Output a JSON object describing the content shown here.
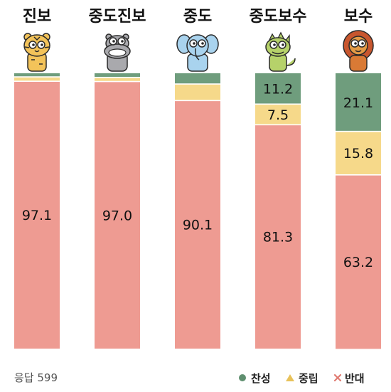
{
  "chart_data": {
    "type": "bar",
    "stacked": true,
    "orientation": "vertical",
    "categories": [
      "진보",
      "중도진보",
      "중도",
      "중도보수",
      "보수"
    ],
    "series": [
      {
        "name": "찬성",
        "color": "#6f9d7d",
        "values": [
          1.3,
          1.5,
          3.9,
          11.2,
          21.1
        ],
        "labels": [
          "",
          "",
          "",
          "11.2",
          "21.1"
        ]
      },
      {
        "name": "중립",
        "color": "#f6d98a",
        "values": [
          1.6,
          1.5,
          6.0,
          7.5,
          15.8
        ],
        "labels": [
          "",
          "",
          "",
          "7.5",
          "15.8"
        ]
      },
      {
        "name": "반대",
        "color": "#ee9b92",
        "values": [
          97.1,
          97.0,
          90.1,
          81.3,
          63.2
        ],
        "labels": [
          "97.1",
          "97.0",
          "90.1",
          "81.3",
          "63.2"
        ]
      }
    ],
    "ylim": [
      0,
      100
    ],
    "legend_position": "bottom-right",
    "mascots": [
      "tiger-icon",
      "hippo-icon",
      "elephant-icon",
      "dinosaur-icon",
      "lion-icon"
    ]
  },
  "footer": {
    "response_count": "응답 599"
  },
  "legend": {
    "agree": {
      "label": "찬성",
      "marker": "circle-icon",
      "color": "#5f8f6f"
    },
    "neutral": {
      "label": "중립",
      "marker": "triangle-icon",
      "color": "#e8c25a"
    },
    "oppose": {
      "label": "반대",
      "marker": "x-icon",
      "color": "#e07b72"
    }
  }
}
